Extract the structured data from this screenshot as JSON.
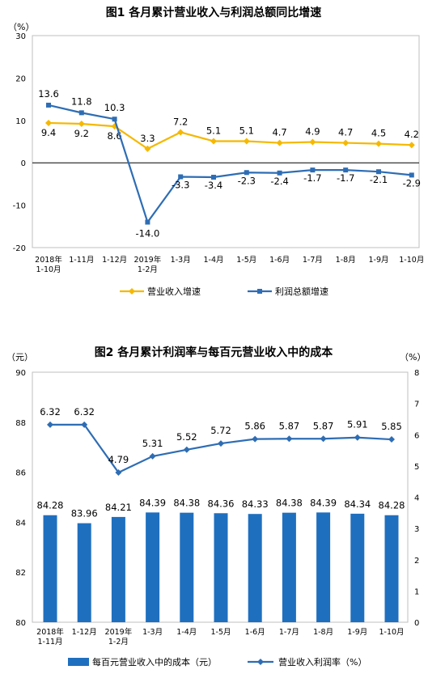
{
  "chart_data": [
    {
      "type": "line",
      "title": "图1  各月累计营业收入与利润总额同比增速",
      "unit_label": "（%）",
      "categories": [
        "2018年\n1-10月",
        "1-11月",
        "1-12月",
        "2019年\n1-2月",
        "1-3月",
        "1-4月",
        "1-5月",
        "1-6月",
        "1-7月",
        "1-8月",
        "1-9月",
        "1-10月"
      ],
      "ylim": [
        -20,
        30
      ],
      "yticks": [
        -20,
        -10,
        0,
        10,
        20,
        30
      ],
      "grid": false,
      "legend_position": "bottom",
      "series": [
        {
          "name": "营业收入增速",
          "color": "#F5B800",
          "marker": "diamond",
          "values": [
            9.4,
            9.2,
            8.6,
            3.3,
            7.2,
            5.1,
            5.1,
            4.7,
            4.9,
            4.7,
            4.5,
            4.2
          ],
          "labels": [
            "9.4",
            "9.2",
            "8.6",
            "",
            "",
            "",
            "",
            "",
            "",
            "",
            "",
            ""
          ]
        },
        {
          "name": "利润总额增速",
          "color": "#2E6DB4",
          "marker": "square",
          "values": [
            13.6,
            11.8,
            10.3,
            -14.0,
            -3.3,
            -3.4,
            -2.3,
            -2.4,
            -1.7,
            -1.7,
            -2.1,
            -2.9
          ],
          "labels": [
            "13.6",
            "11.8",
            "10.3",
            "-14.0",
            "-3.3",
            "-3.4",
            "-2.3",
            "-2.4",
            "-1.7",
            "-1.7",
            "-2.1",
            "-2.9"
          ]
        }
      ],
      "extra_labels": [
        {
          "index": 3,
          "text": "3.3"
        },
        {
          "index": 4,
          "text": "7.2"
        },
        {
          "index": 5,
          "text": "5.1"
        },
        {
          "index": 6,
          "text": "5.1"
        },
        {
          "index": 7,
          "text": "4.7"
        },
        {
          "index": 8,
          "text": "4.9"
        },
        {
          "index": 9,
          "text": "4.7"
        },
        {
          "index": 10,
          "text": "4.5"
        },
        {
          "index": 11,
          "text": "4.2"
        }
      ]
    },
    {
      "type": "bar+line",
      "title": "图2  各月累计利润率与每百元营业收入中的成本",
      "left_unit_label": "（元）",
      "right_unit_label": "（%）",
      "categories": [
        "2018年\n1-11月",
        "1-12月",
        "2019年\n1-2月",
        "1-3月",
        "1-4月",
        "1-5月",
        "1-6月",
        "1-7月",
        "1-8月",
        "1-9月",
        "1-10月"
      ],
      "ylim_left": [
        80,
        90
      ],
      "yticks_left": [
        80,
        82,
        84,
        86,
        88,
        90
      ],
      "ylim_right": [
        0,
        8
      ],
      "yticks_right": [
        0,
        1,
        2,
        3,
        4,
        5,
        6,
        7,
        8
      ],
      "grid": false,
      "legend_position": "bottom",
      "bar_series": {
        "name": "每百元营业收入中的成本（元）",
        "color": "#1F6FBF",
        "values": [
          84.28,
          83.96,
          84.21,
          84.39,
          84.38,
          84.36,
          84.33,
          84.38,
          84.39,
          84.34,
          84.28
        ],
        "labels": [
          "84.28",
          "83.96",
          "84.21",
          "84.39",
          "84.38",
          "84.36",
          "84.33",
          "84.38",
          "84.39",
          "84.34",
          "84.28"
        ]
      },
      "line_series": {
        "name": "营业收入利润率（%）",
        "color": "#2E6DB4",
        "marker": "diamond",
        "values": [
          6.32,
          6.32,
          4.79,
          5.31,
          5.52,
          5.72,
          5.86,
          5.87,
          5.87,
          5.91,
          5.85
        ],
        "labels": [
          "6.32",
          "6.32",
          "4.79",
          "5.31",
          "5.52",
          "5.72",
          "5.86",
          "5.87",
          "5.87",
          "5.91",
          "5.85"
        ]
      }
    }
  ]
}
